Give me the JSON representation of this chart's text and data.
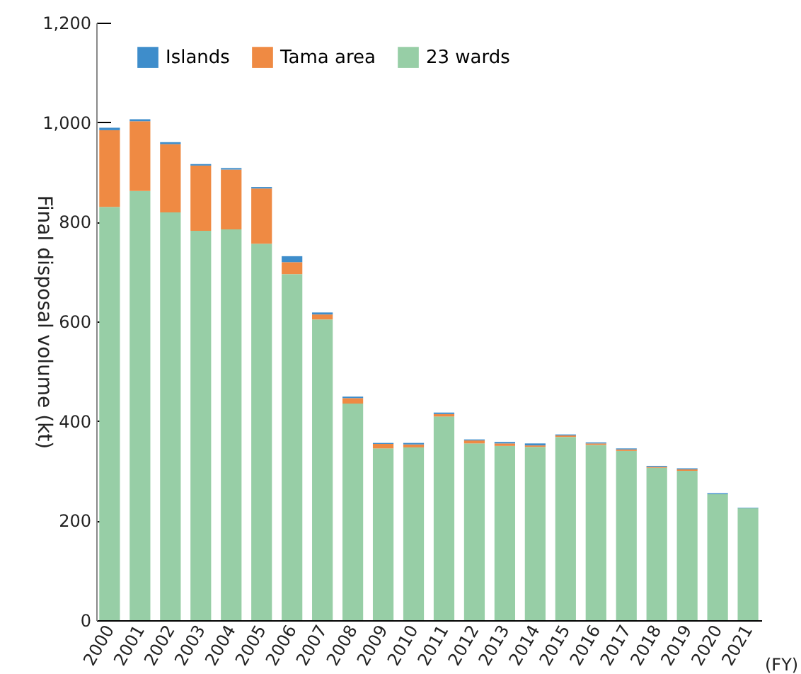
{
  "chart_data": {
    "type": "bar",
    "stacked": true,
    "ylabel": "Final disposal volume (kt)",
    "xlabel": "(FY)",
    "categories": [
      "2000",
      "2001",
      "2002",
      "2003",
      "2004",
      "2005",
      "2006",
      "2007",
      "2008",
      "2009",
      "2010",
      "2011",
      "2012",
      "2013",
      "2014",
      "2015",
      "2016",
      "2017",
      "2018",
      "2019",
      "2020",
      "2021"
    ],
    "series": [
      {
        "name": "23 wards",
        "color": "#97cea6",
        "values": [
          830,
          862,
          819,
          782,
          785,
          756,
          695,
          604,
          435,
          345,
          347,
          409,
          355,
          350,
          348,
          368,
          352,
          340,
          306,
          300,
          253,
          225
        ]
      },
      {
        "name": "Tama area",
        "color": "#ef8a43",
        "values": [
          154,
          140,
          137,
          131,
          120,
          111,
          24,
          10,
          11,
          9,
          6,
          5,
          6,
          5,
          3,
          3,
          3,
          3,
          2,
          3,
          0,
          0
        ]
      },
      {
        "name": "Islands",
        "color": "#3e8dcb",
        "values": [
          5,
          4,
          4,
          3,
          3,
          3,
          12,
          4,
          3,
          2,
          3,
          3,
          2,
          3,
          4,
          2,
          2,
          2,
          2,
          2,
          2,
          1
        ]
      }
    ],
    "ylim": [
      0,
      1200
    ],
    "yticks": [
      0,
      200,
      400,
      600,
      800,
      {
        "value": 1000,
        "label": "1,000"
      },
      {
        "value": 1200,
        "label": "1,200"
      }
    ],
    "grid": false,
    "legend": "top left"
  }
}
